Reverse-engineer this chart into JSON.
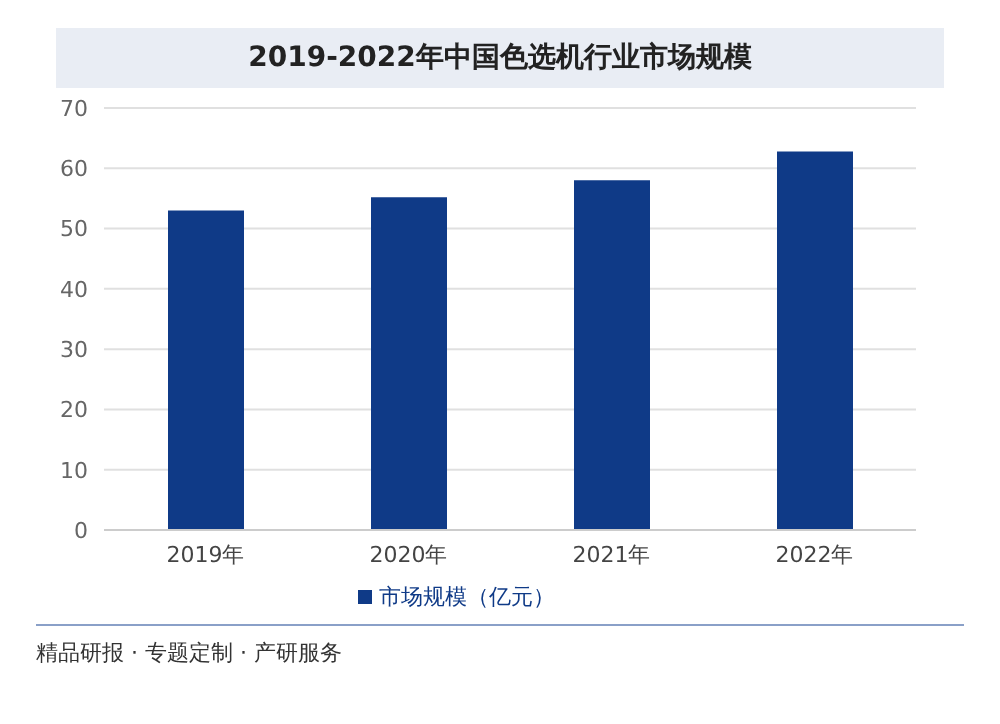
{
  "chart_data": {
    "type": "bar",
    "title": "2019-2022年中国色选机行业市场规模",
    "categories": [
      "2019年",
      "2020年",
      "2021年",
      "2022年"
    ],
    "series": [
      {
        "name": "市场规模（亿元）",
        "color": "#0f3a87",
        "values": [
          53,
          55.2,
          58,
          62.8
        ]
      }
    ],
    "ylim": [
      0,
      70
    ],
    "yticks": [
      0,
      10,
      20,
      30,
      40,
      50,
      60,
      70
    ],
    "grid": "y",
    "legend": "bottom",
    "annotations": [
      "精品研报 · 专题定制 · 产研服务"
    ]
  }
}
